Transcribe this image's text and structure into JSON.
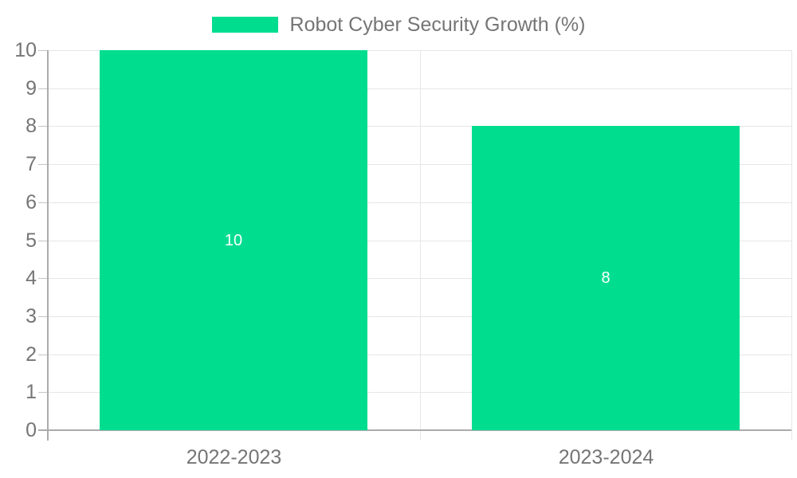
{
  "chart_data": {
    "type": "bar",
    "title": "",
    "categories": [
      "2022-2023",
      "2023-2024"
    ],
    "series": [
      {
        "name": "Robot Cyber Security Growth (%)",
        "values": [
          10,
          8
        ]
      }
    ],
    "value_labels": [
      "10",
      "8"
    ],
    "xlabel": "",
    "ylabel": "",
    "ylim": [
      0,
      10
    ],
    "y_ticks": [
      0,
      1,
      2,
      3,
      4,
      5,
      6,
      7,
      8,
      9,
      10
    ],
    "grid": true,
    "legend_position": "top-center",
    "colors": {
      "bar": "#00dd8f",
      "bar_value_text": "#ffffff",
      "axis_text": "#757575",
      "axis_line": "#ababab",
      "gridline": "#e6e6e6",
      "tick": "#c4c4c4",
      "background": "#ffffff"
    }
  }
}
